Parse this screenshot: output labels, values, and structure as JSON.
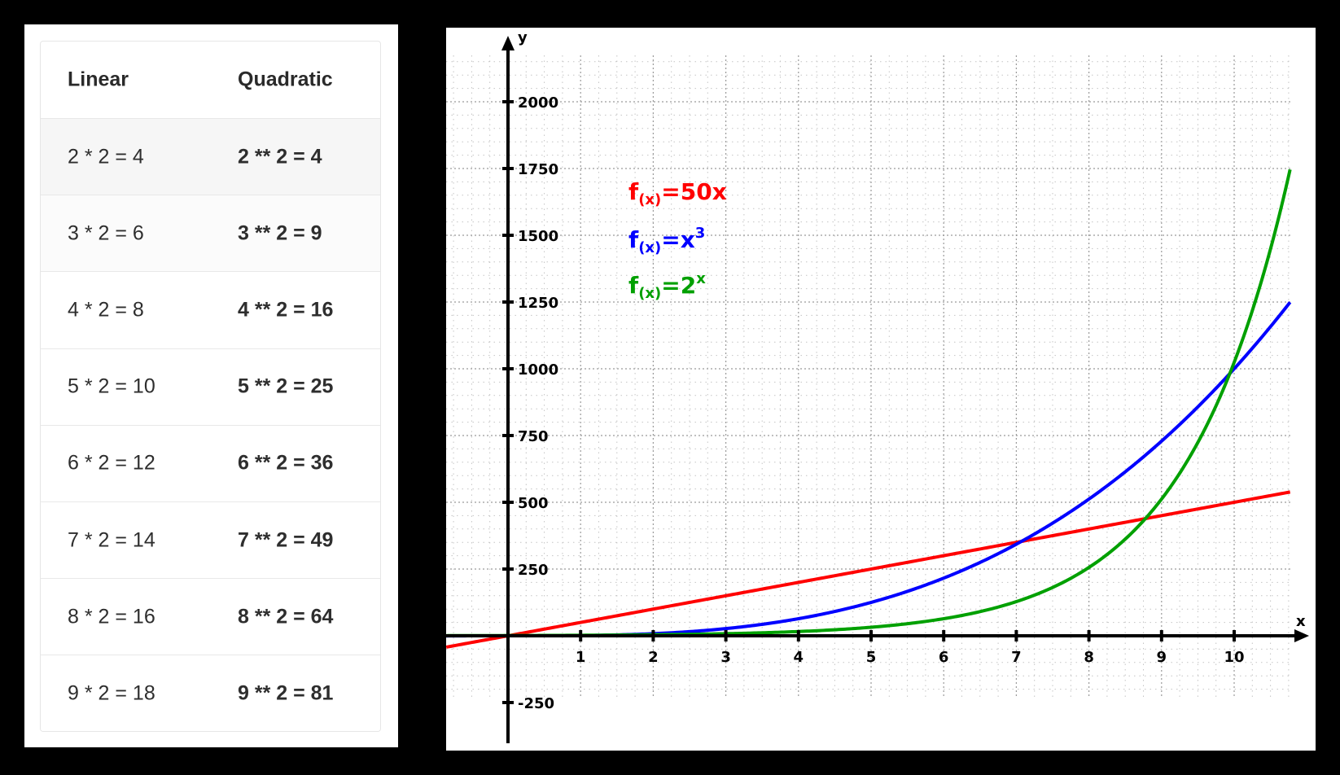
{
  "table": {
    "headers": [
      "Linear",
      "Quadratic"
    ],
    "rows": [
      [
        "2 * 2 = 4",
        "2 ** 2 = 4"
      ],
      [
        "3 * 2 = 6",
        "3 ** 2 = 9"
      ],
      [
        "4 * 2 = 8",
        "4 ** 2 = 16"
      ],
      [
        "5 * 2 = 10",
        "5 ** 2 = 25"
      ],
      [
        "6 * 2 = 12",
        "6 ** 2 = 36"
      ],
      [
        "7 * 2 = 14",
        "7 ** 2 = 49"
      ],
      [
        "8 * 2 = 16",
        "8 ** 2 = 64"
      ],
      [
        "9 * 2 = 18",
        "9 ** 2 = 81"
      ]
    ],
    "row_backgrounds": [
      "#f6f6f6",
      "#fbfbfb",
      "#ffffff",
      "#ffffff",
      "#ffffff",
      "#ffffff",
      "#ffffff",
      "#ffffff"
    ]
  },
  "chart_data": {
    "type": "line",
    "title": "",
    "xlabel": "x",
    "ylabel": "y",
    "xlim": [
      -0.85,
      10.77
    ],
    "ylim": [
      -400,
      2150
    ],
    "grid": true,
    "x_ticks": [
      1,
      2,
      3,
      4,
      5,
      6,
      7,
      8,
      9,
      10
    ],
    "y_ticks": [
      -250,
      250,
      500,
      750,
      1000,
      1250,
      1500,
      1750,
      2000
    ],
    "legend_position": "upper-left (inline labels)",
    "series": [
      {
        "name": "f(x)=50x",
        "label_main": "f",
        "label_sub": "(x)",
        "label_rest": "=50x",
        "label_sup": "",
        "expression": "50x",
        "color": "#ff0000",
        "x": [
          -0.85,
          0,
          1,
          2,
          3,
          4,
          5,
          6,
          7,
          8,
          9,
          10,
          10.77
        ],
        "values": [
          -42.5,
          0,
          50,
          100,
          150,
          200,
          250,
          300,
          350,
          400,
          450,
          500,
          538.5
        ]
      },
      {
        "name": "f(x)=x^3",
        "label_main": "f",
        "label_sub": "(x)",
        "label_rest": "=x",
        "label_sup": "3",
        "expression": "x^3",
        "color": "#0000ff",
        "x": [
          -0.85,
          0,
          1,
          2,
          3,
          4,
          5,
          6,
          7,
          8,
          9,
          10,
          10.77
        ],
        "values": [
          -0.6,
          0,
          1,
          8,
          27,
          64,
          125,
          216,
          343,
          512,
          729,
          1000,
          1249.2
        ]
      },
      {
        "name": "f(x)=2^x",
        "label_main": "f",
        "label_sub": "(x)",
        "label_rest": "=2",
        "label_sup": "x",
        "expression": "2^x",
        "color": "#00a000",
        "x": [
          -0.85,
          0,
          1,
          2,
          3,
          4,
          5,
          6,
          7,
          8,
          9,
          10,
          10.77
        ],
        "values": [
          0.55,
          1,
          2,
          4,
          8,
          16,
          32,
          64,
          128,
          256,
          512,
          1024,
          1746.2
        ]
      }
    ]
  }
}
